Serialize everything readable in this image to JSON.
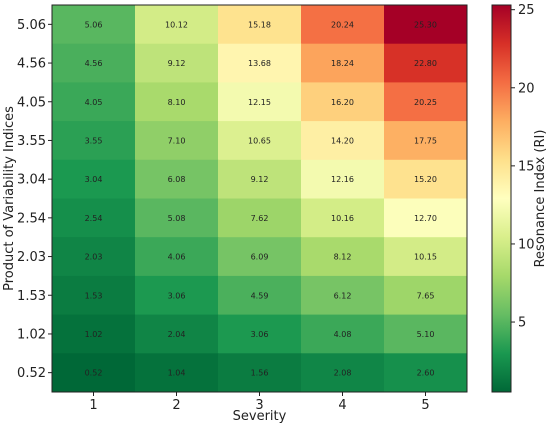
{
  "chart_data": {
    "type": "heatmap",
    "title": "",
    "xlabel": "Severity",
    "ylabel": "Product of Variability Indices",
    "x_categories": [
      "1",
      "2",
      "3",
      "4",
      "5"
    ],
    "y_categories": [
      "5.06",
      "4.56",
      "4.05",
      "3.55",
      "3.04",
      "2.54",
      "2.03",
      "1.53",
      "1.02",
      "0.52"
    ],
    "values": [
      [
        "5.06",
        "10.12",
        "15.18",
        "20.24",
        "25.30"
      ],
      [
        "4.56",
        "9.12",
        "13.68",
        "18.24",
        "22.80"
      ],
      [
        "4.05",
        "8.10",
        "12.15",
        "16.20",
        "20.25"
      ],
      [
        "3.55",
        "7.10",
        "10.65",
        "14.20",
        "17.75"
      ],
      [
        "3.04",
        "6.08",
        "9.12",
        "12.16",
        "15.20"
      ],
      [
        "2.54",
        "5.08",
        "7.62",
        "10.16",
        "12.70"
      ],
      [
        "2.03",
        "4.06",
        "6.09",
        "8.12",
        "10.15"
      ],
      [
        "1.53",
        "3.06",
        "4.59",
        "6.12",
        "7.65"
      ],
      [
        "1.02",
        "2.04",
        "3.06",
        "4.08",
        "5.10"
      ],
      [
        "0.52",
        "1.04",
        "1.56",
        "2.08",
        "2.60"
      ]
    ],
    "colorbar": {
      "label": "Resonance Index (RI)",
      "min": 0.52,
      "max": 25.3,
      "ticks": [
        "5",
        "10",
        "15",
        "20",
        "25"
      ],
      "colormap": "RdYlGn_r"
    }
  }
}
